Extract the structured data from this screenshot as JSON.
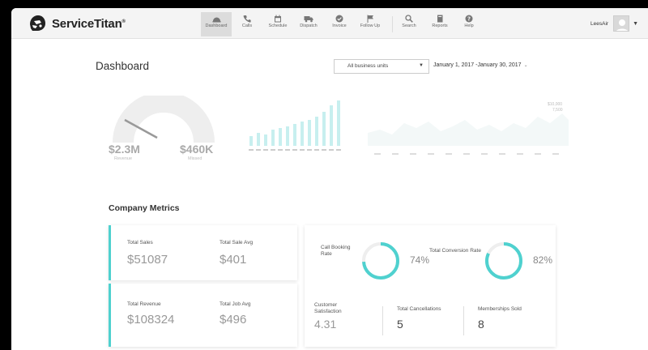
{
  "brand": {
    "name": "ServiceTitan",
    "tm": "®"
  },
  "nav": {
    "items": [
      {
        "label": "Dashboard",
        "icon": "dashboard-icon",
        "active": true
      },
      {
        "label": "Calls",
        "icon": "phone-icon"
      },
      {
        "label": "Schedule",
        "icon": "calendar-icon"
      },
      {
        "label": "Dispatch",
        "icon": "truck-icon"
      },
      {
        "label": "Invoice",
        "icon": "check-circle-icon"
      },
      {
        "label": "Follow Up",
        "icon": "flag-icon"
      },
      {
        "label": "Search",
        "icon": "search-icon"
      },
      {
        "label": "Reports",
        "icon": "book-icon"
      },
      {
        "label": "Help",
        "icon": "question-icon"
      }
    ]
  },
  "user": {
    "name": "LeesAir"
  },
  "header": {
    "title": "Dashboard",
    "business_unit": "All business units",
    "date_range": "January 1, 2017 -January 30, 2017"
  },
  "gauge": {
    "revenue_value": "$2.3M",
    "revenue_label": "Revenue",
    "missed_value": "$460K",
    "missed_label": "Missed",
    "fraction": 0.83
  },
  "line_chart": {
    "top_label": "$10,000",
    "sub_label": "7,500"
  },
  "metrics": {
    "title": "Company Metrics",
    "total_sales_label": "Total Sales",
    "total_sales_value": "$51087",
    "total_sale_avg_label": "Total Sale Avg",
    "total_sale_avg_value": "$401",
    "total_revenue_label": "Total Revenue",
    "total_revenue_value": "$108324",
    "total_job_avg_label": "Total Job Avg",
    "total_job_avg_value": "$496",
    "call_booking_rate_label": "Call Booking Rate",
    "call_booking_rate_value": "74%",
    "call_booking_rate_fraction": 0.74,
    "total_conversion_rate_label": "Total Conversion Rate",
    "total_conversion_rate_value": "82%",
    "total_conversion_rate_fraction": 0.82,
    "customer_satisfaction_label": "Customer Satisfaction",
    "customer_satisfaction_value": "4.31",
    "total_cancellations_label": "Total Cancellations",
    "total_cancellations_value": "5",
    "memberships_sold_label": "Memberships Sold",
    "memberships_sold_value": "8"
  },
  "colors": {
    "accent": "#4fd1cf",
    "gauge_track": "#eeeeee",
    "bars": "#c7efef"
  }
}
